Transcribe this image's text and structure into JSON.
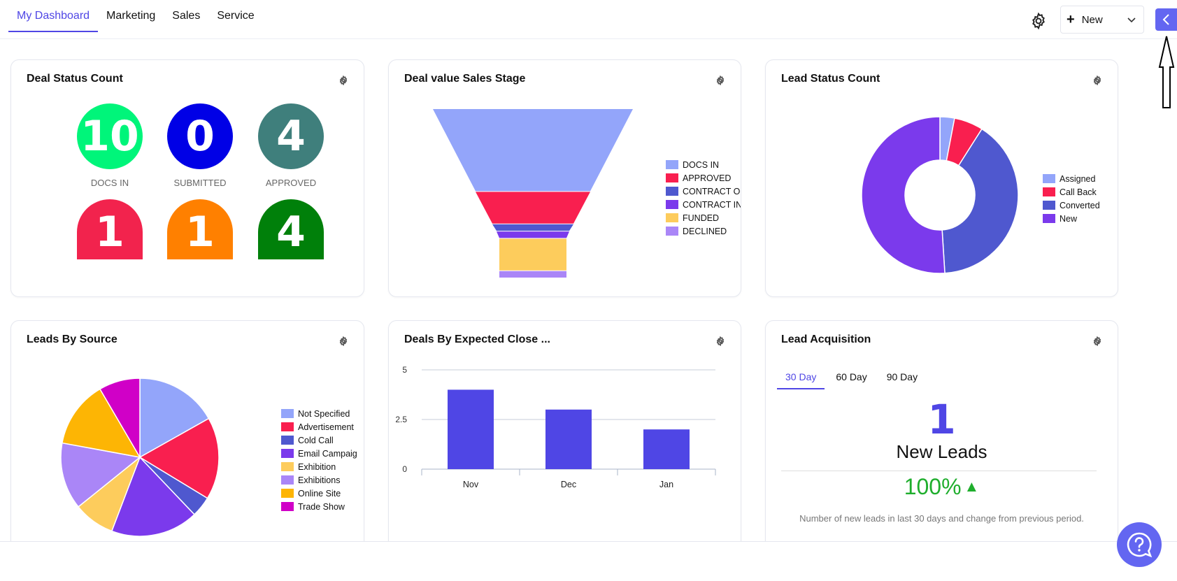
{
  "nav": {
    "tabs": [
      {
        "label": "My Dashboard",
        "active": true
      },
      {
        "label": "Marketing"
      },
      {
        "label": "Sales"
      },
      {
        "label": "Service"
      }
    ],
    "new_label": "New"
  },
  "widgets": {
    "deal_status": {
      "title": "Deal Status Count",
      "stats": [
        {
          "value": "10",
          "label": "DOCS IN",
          "color": "#00f57a"
        },
        {
          "value": "0",
          "label": "SUBMITTED",
          "color": "#0000e6"
        },
        {
          "value": "4",
          "label": "APPROVED",
          "color": "#3f7f7c"
        },
        {
          "value": "1",
          "color": "#f2234d"
        },
        {
          "value": "1",
          "color": "#ff8000"
        },
        {
          "value": "4",
          "color": "#00800a"
        }
      ]
    },
    "deal_value": {
      "title": "Deal value Sales Stage"
    },
    "lead_status": {
      "title": "Lead Status Count"
    },
    "leads_by_source": {
      "title": "Leads By Source"
    },
    "deals_close": {
      "title": "Deals By Expected Close ..."
    },
    "lead_acquisition": {
      "title": "Lead Acquisition",
      "tabs": [
        "30 Day",
        "60 Day",
        "90 Day"
      ],
      "active_tab": "30 Day",
      "value": "1",
      "value_label": "New Leads",
      "change": "100%",
      "note": "Number of new leads in last 30 days and change from previous period."
    }
  },
  "chart_data": [
    {
      "type": "funnel",
      "title": "Deal value Sales Stage",
      "categories": [
        "DOCS IN",
        "APPROVED",
        "CONTRACT OU",
        "CONTRACT IN",
        "FUNDED",
        "DECLINED"
      ],
      "values": [
        46,
        18,
        4,
        4,
        18,
        4
      ],
      "colors": [
        "#93a5fa",
        "#f91f4f",
        "#4f58cf",
        "#7b3aec",
        "#fdcc5c",
        "#aa86f7"
      ]
    },
    {
      "type": "pie",
      "title": "Lead Status Count",
      "donut": true,
      "categories": [
        "Assigned",
        "Call Back",
        "Converted",
        "New"
      ],
      "values": [
        3,
        6,
        40,
        51
      ],
      "colors": [
        "#93a5fa",
        "#f91f4f",
        "#4f58cf",
        "#7b3aec"
      ]
    },
    {
      "type": "pie",
      "title": "Leads By Source",
      "categories": [
        "Not Specified",
        "Advertisement",
        "Cold Call",
        "Email Campaig",
        "Exhibition",
        "Exhibitions",
        "Online Site",
        "Trade Show"
      ],
      "values": [
        16,
        16,
        4,
        17,
        8,
        13,
        13,
        8
      ],
      "colors": [
        "#93a5fa",
        "#f91f4f",
        "#4f58cf",
        "#7b3aec",
        "#fdcc5c",
        "#aa86f7",
        "#fdb504",
        "#d000c7"
      ]
    },
    {
      "type": "bar",
      "title": "Deals By Expected Close ...",
      "categories": [
        "Nov",
        "Dec",
        "Jan"
      ],
      "values": [
        4,
        3,
        2
      ],
      "yticks": [
        "0",
        "2.5",
        "5"
      ],
      "ylim": [
        0,
        5
      ],
      "color": "#4f46e5"
    }
  ]
}
